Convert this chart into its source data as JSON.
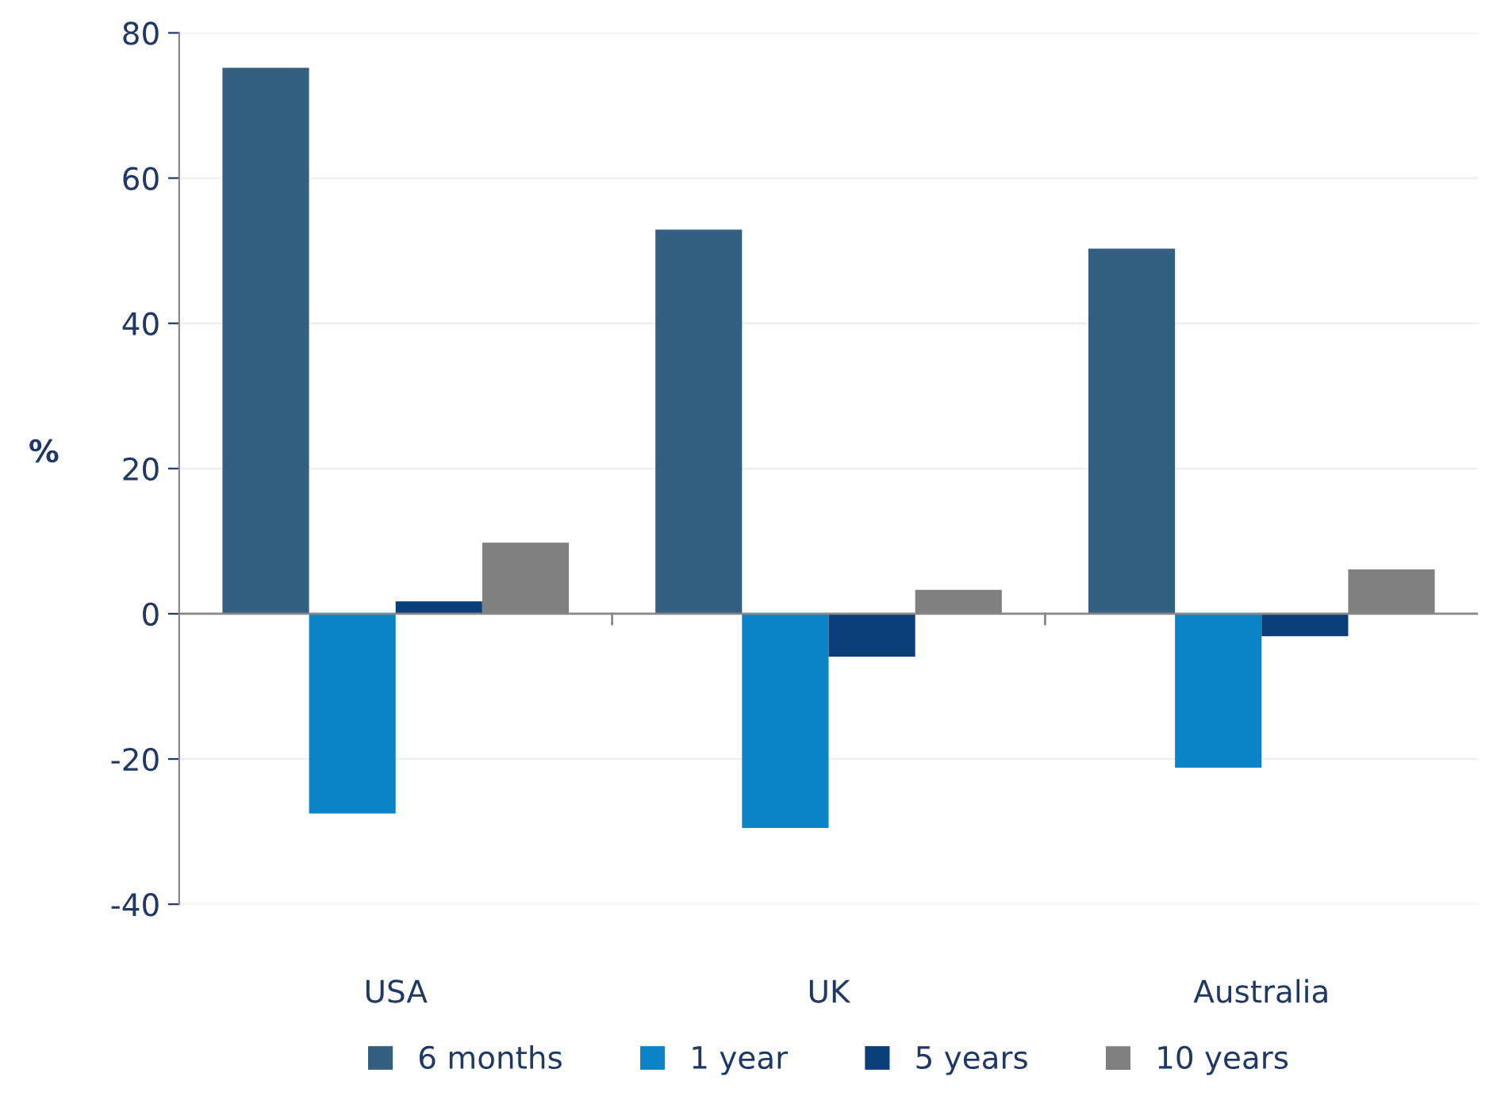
{
  "chart_data": {
    "type": "bar",
    "ylabel": "%",
    "categories": [
      "USA",
      "UK",
      "Australia"
    ],
    "series": [
      {
        "name": "6 months",
        "color": "#336080",
        "values": [
          75.2,
          52.9,
          50.3
        ]
      },
      {
        "name": "1 year",
        "color": "#0a84c6",
        "values": [
          -27.5,
          -29.5,
          -21.2
        ]
      },
      {
        "name": "5 years",
        "color": "#0a3f7a",
        "values": [
          1.7,
          -5.9,
          -3.1
        ]
      },
      {
        "name": "10 years",
        "color": "#808080",
        "values": [
          9.8,
          3.3,
          6.1
        ]
      }
    ],
    "ylim": [
      -40,
      80
    ],
    "yticks": [
      -40,
      -20,
      0,
      20,
      40,
      60,
      80
    ],
    "grid": "y",
    "legend": "bottom"
  }
}
